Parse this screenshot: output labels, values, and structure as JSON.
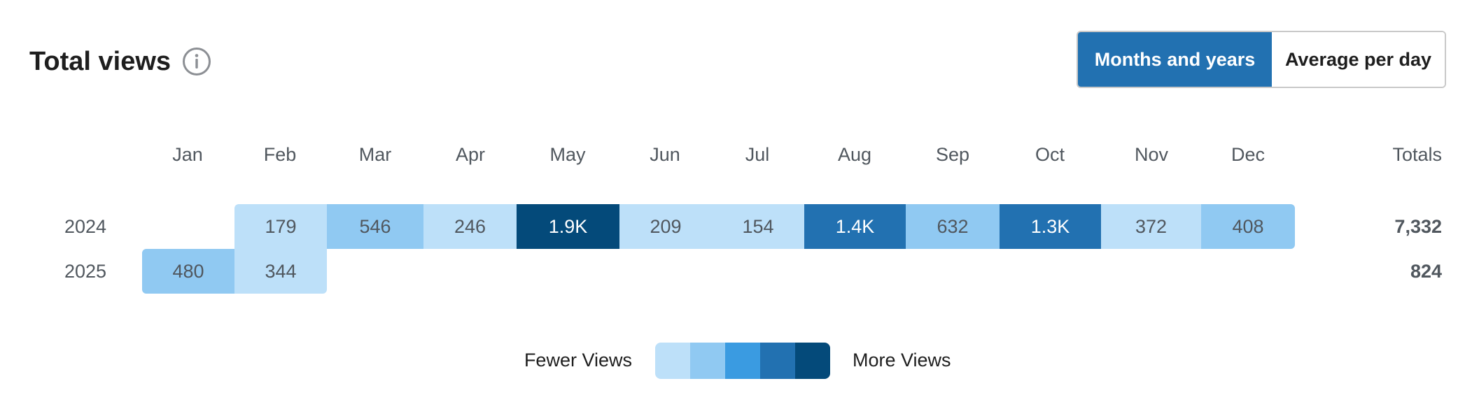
{
  "header": {
    "title": "Total views",
    "info_icon": "info-icon"
  },
  "toggle": {
    "options": [
      "Months and years",
      "Average per day"
    ],
    "selected": "Months and years"
  },
  "table": {
    "columns": [
      "Jan",
      "Feb",
      "Mar",
      "Apr",
      "May",
      "Jun",
      "Jul",
      "Aug",
      "Sep",
      "Oct",
      "Nov",
      "Dec"
    ],
    "totals_header": "Totals",
    "rows": [
      {
        "year": "2024",
        "cells": [
          {
            "month": "Jan",
            "value": "",
            "level": 0
          },
          {
            "month": "Feb",
            "value": "179",
            "level": 1
          },
          {
            "month": "Mar",
            "value": "546",
            "level": 2
          },
          {
            "month": "Apr",
            "value": "246",
            "level": 1
          },
          {
            "month": "May",
            "value": "1.9K",
            "level": 5
          },
          {
            "month": "Jun",
            "value": "209",
            "level": 1
          },
          {
            "month": "Jul",
            "value": "154",
            "level": 1
          },
          {
            "month": "Aug",
            "value": "1.4K",
            "level": 4
          },
          {
            "month": "Sep",
            "value": "632",
            "level": 2
          },
          {
            "month": "Oct",
            "value": "1.3K",
            "level": 4
          },
          {
            "month": "Nov",
            "value": "372",
            "level": 1
          },
          {
            "month": "Dec",
            "value": "408",
            "level": 2
          }
        ],
        "total": "7,332"
      },
      {
        "year": "2025",
        "cells": [
          {
            "month": "Jan",
            "value": "480",
            "level": 2
          },
          {
            "month": "Feb",
            "value": "344",
            "level": 1
          }
        ],
        "total": "824"
      }
    ]
  },
  "legend": {
    "fewer_label": "Fewer Views",
    "more_label": "More Views",
    "colors": [
      "#bde0f9",
      "#90c9f2",
      "#3a9be1",
      "#2271b1",
      "#044a7a"
    ]
  }
}
